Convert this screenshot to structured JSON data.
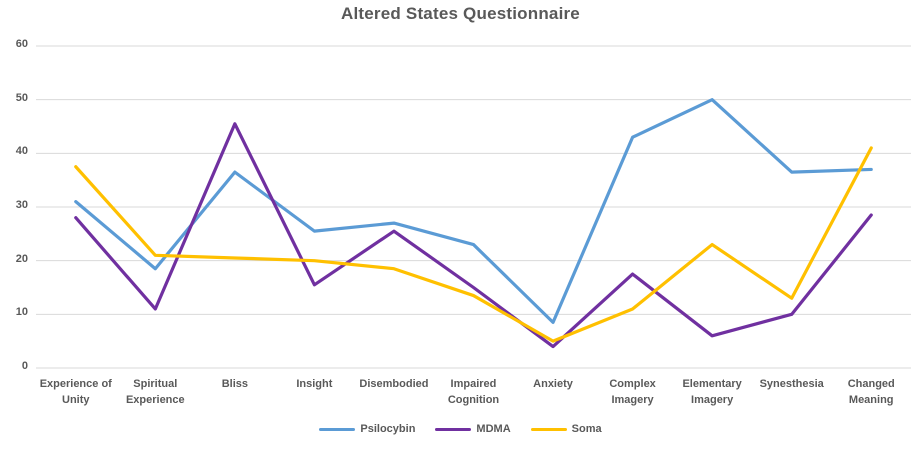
{
  "chart_data": {
    "type": "line",
    "title": "Altered States Questionnaire",
    "categories": [
      "Experience of Unity",
      "Spiritual Experience",
      "Bliss",
      "Insight",
      "Disembodied",
      "Impaired Cognition",
      "Anxiety",
      "Complex Imagery",
      "Elementary Imagery",
      "Synesthesia",
      "Changed Meaning"
    ],
    "tick_labels": [
      [
        "Experience of",
        "Unity"
      ],
      [
        "Spiritual",
        "Experience"
      ],
      [
        "Bliss"
      ],
      [
        "Insight"
      ],
      [
        "Disembodied"
      ],
      [
        "Impaired",
        "Cognition"
      ],
      [
        "Anxiety"
      ],
      [
        "Complex",
        "Imagery"
      ],
      [
        "Elementary",
        "Imagery"
      ],
      [
        "Synesthesia"
      ],
      [
        "Changed",
        "Meaning"
      ]
    ],
    "series": [
      {
        "name": "Psilocybin",
        "color": "#5B9BD5",
        "values": [
          31,
          18.5,
          36.5,
          25.5,
          27,
          23,
          8.5,
          43,
          50,
          36.5,
          37
        ]
      },
      {
        "name": "MDMA",
        "color": "#7030A0",
        "values": [
          28,
          11,
          45.5,
          15.5,
          25.5,
          15,
          4,
          17.5,
          6,
          10,
          28.5
        ]
      },
      {
        "name": "Soma",
        "color": "#FFC000",
        "values": [
          37.5,
          21,
          20.5,
          20,
          18.5,
          13.5,
          5,
          11,
          23,
          13,
          41
        ]
      }
    ],
    "y_ticks": [
      0,
      10,
      20,
      30,
      40,
      50,
      60
    ],
    "ylim": [
      0,
      60
    ],
    "xlabel": "",
    "ylabel": "",
    "grid": "horizontal",
    "legend_position": "bottom",
    "colors": {
      "grid": "#D9D9D9",
      "text": "#595959",
      "background": "#FFFFFF"
    }
  }
}
